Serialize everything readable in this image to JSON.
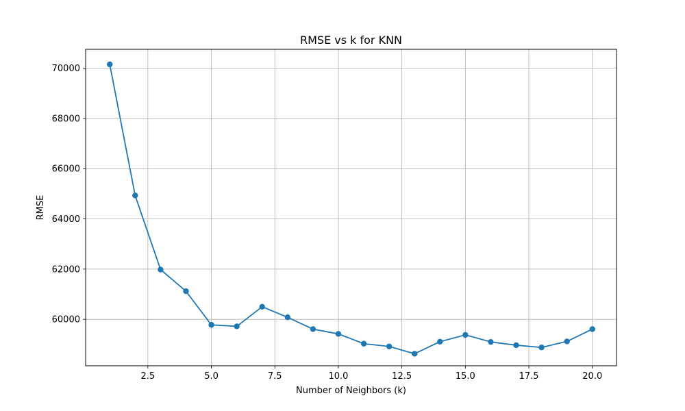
{
  "chart_data": {
    "type": "line",
    "title": "RMSE vs k for KNN",
    "xlabel": "Number of Neighbors (k)",
    "ylabel": "RMSE",
    "xlim": [
      0.05,
      20.95
    ],
    "ylim": [
      58150,
      70750
    ],
    "xticks": [
      2.5,
      5.0,
      7.5,
      10.0,
      12.5,
      15.0,
      17.5,
      20.0
    ],
    "xtick_labels": [
      "2.5",
      "5.0",
      "7.5",
      "10.0",
      "12.5",
      "15.0",
      "17.5",
      "20.0"
    ],
    "yticks": [
      60000,
      62000,
      64000,
      66000,
      68000,
      70000
    ],
    "ytick_labels": [
      "60000",
      "62000",
      "64000",
      "66000",
      "68000",
      "70000"
    ],
    "grid": true,
    "series": [
      {
        "color": "#1f77b4",
        "marker": "circle",
        "x": [
          1,
          2,
          3,
          4,
          5,
          6,
          7,
          8,
          9,
          10,
          11,
          12,
          13,
          14,
          15,
          16,
          17,
          18,
          19,
          20
        ],
        "values": [
          70150,
          64930,
          61980,
          61120,
          59780,
          59720,
          60500,
          60080,
          59610,
          59420,
          59030,
          58920,
          58630,
          59110,
          59380,
          59100,
          58970,
          58880,
          59120,
          59610
        ]
      }
    ]
  }
}
